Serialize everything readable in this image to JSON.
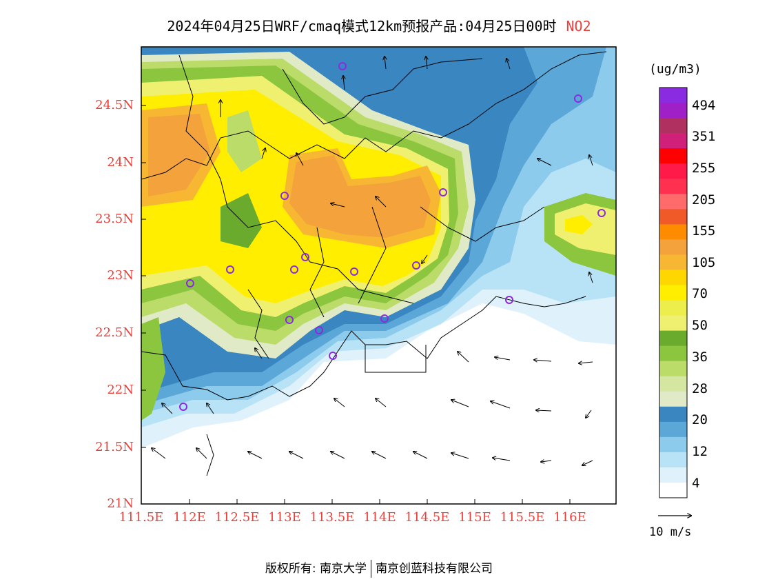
{
  "title": {
    "main": "2024年04月25日WRF/cmaq模式12km预报产品:04月25日00时",
    "pollutant": "NO2"
  },
  "axes": {
    "lat_labels": [
      "24.5N",
      "24N",
      "23.5N",
      "23N",
      "22.5N",
      "22N",
      "21.5N",
      "21N"
    ],
    "lon_labels": [
      "111.5E",
      "112E",
      "112.5E",
      "113E",
      "113.5E",
      "114E",
      "114.5E",
      "115E",
      "115.5E",
      "116E"
    ]
  },
  "legend": {
    "unit": "(ug/m3)",
    "labels": [
      "494",
      "351",
      "255",
      "205",
      "155",
      "105",
      "70",
      "50",
      "36",
      "28",
      "20",
      "12",
      "4"
    ],
    "colors": [
      "#8a2be2",
      "#a020c8",
      "#b03060",
      "#d0207a",
      "#ff0000",
      "#ff1a4a",
      "#ff3050",
      "#ff6a6a",
      "#f05a28",
      "#ff8c00",
      "#f4a23c",
      "#f7b733",
      "#ffd700",
      "#ffee00",
      "#eded4c",
      "#f0f070",
      "#6aab2e",
      "#8cc63f",
      "#bcdc6a",
      "#d4e6a0",
      "#e1eac6",
      "#3a86c0",
      "#5aa7d8",
      "#8ccbeb",
      "#b8e2f6",
      "#dff1fb",
      "#ffffff"
    ]
  },
  "wind_reference": "10 m/s",
  "footer": {
    "left": "版权所有: 南京大学",
    "right": "南京创蓝科技有限公司"
  },
  "colors": {
    "label_red": "#e8403a",
    "site_marker": "#8a2be2"
  }
}
